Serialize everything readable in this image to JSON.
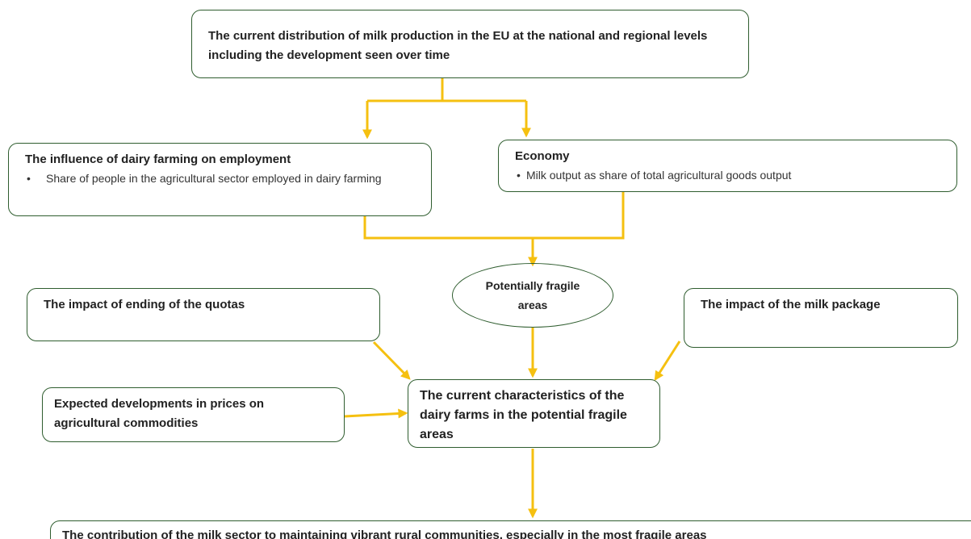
{
  "nodes": [
    {
      "title": "The current distribution of milk production in the EU at the national and regional levels including the development seen over time"
    },
    {
      "title": "The influence of dairy farming on employment",
      "bullets": [
        "Share of people in the agricultural sector employed in dairy farming"
      ]
    },
    {
      "title": "Economy",
      "bullets": [
        "Milk output as share of total agricultural goods output"
      ]
    },
    {
      "title": "Potentially fragile areas"
    },
    {
      "title": "The impact of ending of the quotas"
    },
    {
      "title": "The impact of the milk package"
    },
    {
      "title": "Expected developments in prices on agricultural commodities"
    },
    {
      "title": "The current characteristics of the dairy farms in the potential fragile areas"
    },
    {
      "title": "The contribution of the milk sector to maintaining vibrant rural communities, especially in the most fragile areas"
    }
  ]
}
